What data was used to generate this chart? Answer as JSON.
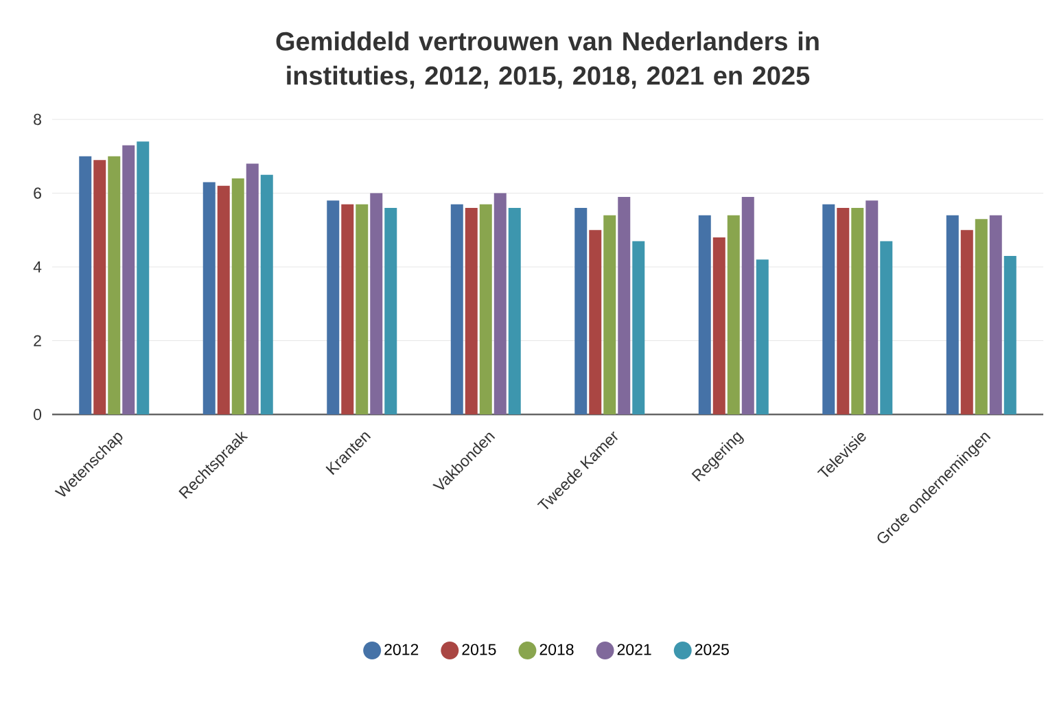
{
  "chart_data": {
    "type": "bar",
    "title": "Gemiddeld vertrouwen van Nederlanders in instituties, 2012, 2015, 2018, 2021 en 2025",
    "categories": [
      "Wetenschap",
      "Rechtspraak",
      "Kranten",
      "Vakbonden",
      "Tweede Kamer",
      "Regering",
      "Televisie",
      "Grote ondernemingen"
    ],
    "series": [
      {
        "name": "2012",
        "color": "#4572a7",
        "values": [
          7.0,
          6.3,
          5.8,
          5.7,
          5.6,
          5.4,
          5.7,
          5.4
        ]
      },
      {
        "name": "2015",
        "color": "#aa4643",
        "values": [
          6.9,
          6.2,
          5.7,
          5.6,
          5.0,
          4.8,
          5.6,
          5.0
        ]
      },
      {
        "name": "2018",
        "color": "#89a54e",
        "values": [
          7.0,
          6.4,
          5.7,
          5.7,
          5.4,
          5.4,
          5.6,
          5.3
        ]
      },
      {
        "name": "2021",
        "color": "#80699b",
        "values": [
          7.3,
          6.8,
          6.0,
          6.0,
          5.9,
          5.9,
          5.8,
          5.4
        ]
      },
      {
        "name": "2025",
        "color": "#3d96ae",
        "values": [
          7.4,
          6.5,
          5.6,
          5.6,
          4.7,
          4.2,
          4.7,
          4.3
        ]
      }
    ],
    "ylim": [
      0,
      8
    ],
    "yticks": [
      0,
      2,
      4,
      6,
      8
    ],
    "grid": "y",
    "legend": "bottom"
  }
}
